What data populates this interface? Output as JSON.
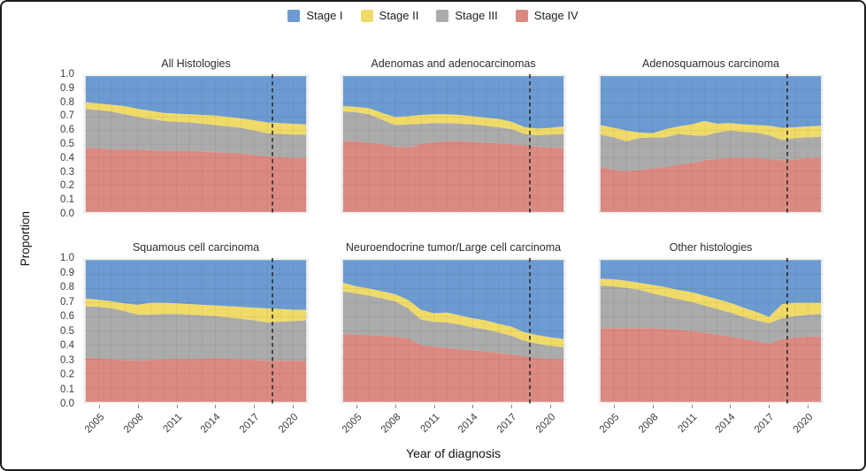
{
  "figure": {
    "background": "#ffffff",
    "border_color": "#1c1c1c"
  },
  "legend": {
    "items": [
      {
        "label": "Stage I",
        "color": "#6C9BD2"
      },
      {
        "label": "Stage II",
        "color": "#F0DB69"
      },
      {
        "label": "Stage III",
        "color": "#ABABAB"
      },
      {
        "label": "Stage IV",
        "color": "#DB8A82"
      }
    ]
  },
  "chart_data": {
    "type": "area",
    "stacked": true,
    "title": "",
    "xlabel": "Year of diagnosis",
    "ylabel": "Proportion",
    "ylim": [
      0,
      1
    ],
    "xlim": [
      2003.8,
      2021.2
    ],
    "x": [
      2004,
      2005,
      2006,
      2007,
      2008,
      2009,
      2010,
      2011,
      2012,
      2013,
      2014,
      2015,
      2016,
      2017,
      2018,
      2019,
      2020,
      2021
    ],
    "x_ticks": [
      "2005",
      "2008",
      "2011",
      "2014",
      "2017",
      "2020"
    ],
    "x_tick_years": [
      2005,
      2008,
      2011,
      2014,
      2017,
      2020
    ],
    "y_ticks": [
      "1.0",
      "0.9",
      "0.8",
      "0.7",
      "0.6",
      "0.5",
      "0.4",
      "0.3",
      "0.2",
      "0.1",
      "0.0"
    ],
    "grid": true,
    "legend_position": "top",
    "reference_line": {
      "style": "dashed",
      "x": 2018.4,
      "color": "#2b2b2b"
    },
    "stack_order": [
      "Stage IV",
      "Stage III",
      "Stage II",
      "Stage I"
    ],
    "facets": [
      {
        "title": "All Histologies",
        "series": [
          {
            "name": "Stage I",
            "values": [
              0.19,
              0.2,
              0.21,
              0.22,
              0.24,
              0.255,
              0.27,
              0.275,
              0.28,
              0.285,
              0.29,
              0.3,
              0.31,
              0.325,
              0.34,
              0.345,
              0.35,
              0.355
            ]
          },
          {
            "name": "Stage II",
            "values": [
              0.05,
              0.05,
              0.05,
              0.06,
              0.06,
              0.06,
              0.06,
              0.06,
              0.06,
              0.065,
              0.07,
              0.07,
              0.07,
              0.075,
              0.08,
              0.08,
              0.08,
              0.075
            ]
          },
          {
            "name": "Stage III",
            "values": [
              0.29,
              0.28,
              0.28,
              0.26,
              0.24,
              0.23,
              0.22,
              0.215,
              0.21,
              0.205,
              0.2,
              0.195,
              0.19,
              0.18,
              0.17,
              0.17,
              0.17,
              0.17
            ]
          },
          {
            "name": "Stage IV",
            "values": [
              0.47,
              0.47,
              0.46,
              0.46,
              0.46,
              0.455,
              0.45,
              0.45,
              0.45,
              0.445,
              0.44,
              0.435,
              0.43,
              0.42,
              0.41,
              0.405,
              0.4,
              0.4
            ]
          }
        ]
      },
      {
        "title": "Adenomas and adenocarcinomas",
        "series": [
          {
            "name": "Stage I",
            "values": [
              0.22,
              0.225,
              0.235,
              0.27,
              0.3,
              0.295,
              0.285,
              0.28,
              0.28,
              0.285,
              0.295,
              0.305,
              0.315,
              0.335,
              0.375,
              0.385,
              0.38,
              0.37
            ]
          },
          {
            "name": "Stage II",
            "values": [
              0.04,
              0.04,
              0.045,
              0.05,
              0.06,
              0.06,
              0.065,
              0.065,
              0.065,
              0.065,
              0.06,
              0.06,
              0.06,
              0.055,
              0.05,
              0.05,
              0.05,
              0.055
            ]
          },
          {
            "name": "Stage III",
            "values": [
              0.22,
              0.215,
              0.21,
              0.18,
              0.16,
              0.17,
              0.15,
              0.14,
              0.135,
              0.13,
              0.13,
              0.125,
              0.12,
              0.11,
              0.085,
              0.085,
              0.095,
              0.105
            ]
          },
          {
            "name": "Stage IV",
            "values": [
              0.52,
              0.52,
              0.51,
              0.5,
              0.48,
              0.475,
              0.5,
              0.515,
              0.52,
              0.52,
              0.515,
              0.51,
              0.505,
              0.5,
              0.49,
              0.48,
              0.475,
              0.47
            ]
          }
        ]
      },
      {
        "title": "Adenosquamous carcinoma",
        "series": [
          {
            "name": "Stage I",
            "values": [
              0.36,
              0.38,
              0.4,
              0.415,
              0.42,
              0.39,
              0.37,
              0.355,
              0.33,
              0.35,
              0.345,
              0.355,
              0.36,
              0.365,
              0.38,
              0.375,
              0.37,
              0.365
            ]
          },
          {
            "name": "Stage II",
            "values": [
              0.07,
              0.07,
              0.08,
              0.04,
              0.03,
              0.06,
              0.055,
              0.08,
              0.11,
              0.065,
              0.055,
              0.055,
              0.055,
              0.07,
              0.09,
              0.08,
              0.08,
              0.08
            ]
          },
          {
            "name": "Stage III",
            "values": [
              0.24,
              0.24,
              0.22,
              0.235,
              0.23,
              0.22,
              0.225,
              0.205,
              0.18,
              0.195,
              0.2,
              0.19,
              0.185,
              0.175,
              0.15,
              0.16,
              0.15,
              0.155
            ]
          },
          {
            "name": "Stage IV",
            "values": [
              0.33,
              0.31,
              0.3,
              0.31,
              0.32,
              0.33,
              0.35,
              0.36,
              0.38,
              0.39,
              0.4,
              0.4,
              0.4,
              0.39,
              0.38,
              0.385,
              0.4,
              0.4
            ]
          }
        ]
      },
      {
        "title": "Squamous cell carcinoma",
        "series": [
          {
            "name": "Stage I",
            "values": [
              0.27,
              0.28,
              0.29,
              0.305,
              0.315,
              0.3,
              0.3,
              0.305,
              0.31,
              0.315,
              0.32,
              0.325,
              0.33,
              0.335,
              0.34,
              0.345,
              0.35,
              0.35
            ]
          },
          {
            "name": "Stage II",
            "values": [
              0.055,
              0.05,
              0.05,
              0.055,
              0.07,
              0.085,
              0.08,
              0.075,
              0.075,
              0.075,
              0.075,
              0.08,
              0.085,
              0.09,
              0.1,
              0.09,
              0.08,
              0.075
            ]
          },
          {
            "name": "Stage III",
            "values": [
              0.365,
              0.36,
              0.36,
              0.345,
              0.325,
              0.32,
              0.32,
              0.32,
              0.315,
              0.305,
              0.295,
              0.29,
              0.285,
              0.28,
              0.27,
              0.275,
              0.28,
              0.285
            ]
          },
          {
            "name": "Stage IV",
            "values": [
              0.31,
              0.31,
              0.3,
              0.295,
              0.29,
              0.295,
              0.3,
              0.3,
              0.3,
              0.305,
              0.31,
              0.305,
              0.3,
              0.295,
              0.29,
              0.29,
              0.29,
              0.29
            ]
          }
        ]
      },
      {
        "title": "Neuroendocrine tumor/Large cell carcinoma",
        "series": [
          {
            "name": "Stage I",
            "values": [
              0.16,
              0.185,
              0.2,
              0.22,
              0.24,
              0.28,
              0.35,
              0.375,
              0.37,
              0.39,
              0.41,
              0.425,
              0.45,
              0.47,
              0.51,
              0.53,
              0.545,
              0.555
            ]
          },
          {
            "name": "Stage II",
            "values": [
              0.06,
              0.05,
              0.05,
              0.05,
              0.05,
              0.06,
              0.07,
              0.06,
              0.07,
              0.065,
              0.065,
              0.065,
              0.06,
              0.065,
              0.06,
              0.06,
              0.06,
              0.06
            ]
          },
          {
            "name": "Stage III",
            "values": [
              0.3,
              0.29,
              0.28,
              0.265,
              0.25,
              0.21,
              0.18,
              0.175,
              0.18,
              0.175,
              0.16,
              0.155,
              0.145,
              0.13,
              0.11,
              0.1,
              0.09,
              0.085
            ]
          },
          {
            "name": "Stage IV",
            "values": [
              0.48,
              0.475,
              0.47,
              0.465,
              0.46,
              0.45,
              0.4,
              0.39,
              0.38,
              0.37,
              0.365,
              0.355,
              0.345,
              0.335,
              0.32,
              0.31,
              0.305,
              0.3
            ]
          }
        ]
      },
      {
        "title": "Other histologies",
        "series": [
          {
            "name": "Stage I",
            "values": [
              0.13,
              0.135,
              0.145,
              0.16,
              0.175,
              0.19,
              0.21,
              0.225,
              0.25,
              0.275,
              0.3,
              0.335,
              0.365,
              0.4,
              0.31,
              0.3,
              0.3,
              0.3
            ]
          },
          {
            "name": "Stage II",
            "values": [
              0.05,
              0.05,
              0.05,
              0.05,
              0.06,
              0.065,
              0.065,
              0.07,
              0.07,
              0.07,
              0.07,
              0.065,
              0.06,
              0.045,
              0.1,
              0.095,
              0.085,
              0.08
            ]
          },
          {
            "name": "Stage III",
            "values": [
              0.3,
              0.295,
              0.285,
              0.27,
              0.245,
              0.23,
              0.215,
              0.205,
              0.19,
              0.18,
              0.17,
              0.155,
              0.145,
              0.145,
              0.15,
              0.15,
              0.155,
              0.16
            ]
          },
          {
            "name": "Stage IV",
            "values": [
              0.52,
              0.52,
              0.52,
              0.52,
              0.52,
              0.515,
              0.51,
              0.5,
              0.49,
              0.475,
              0.46,
              0.445,
              0.43,
              0.41,
              0.44,
              0.455,
              0.46,
              0.46
            ]
          }
        ]
      }
    ]
  }
}
